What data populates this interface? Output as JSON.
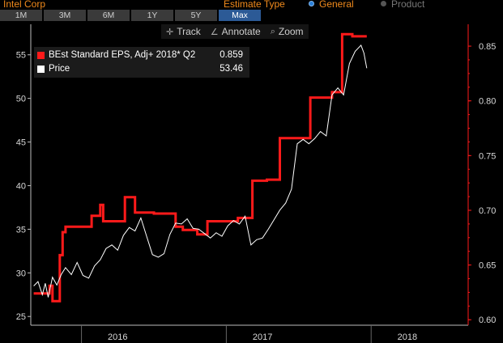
{
  "header": {
    "ticker": "Intel Corp",
    "estimate_type_label": "Estimate Type",
    "options": [
      {
        "label": "General",
        "selected": true
      },
      {
        "label": "Product",
        "selected": false
      }
    ]
  },
  "range_buttons": [
    {
      "label": "1M",
      "active": false
    },
    {
      "label": "3M",
      "active": false
    },
    {
      "label": "6M",
      "active": false
    },
    {
      "label": "1Y",
      "active": false
    },
    {
      "label": "5Y",
      "active": false
    },
    {
      "label": "Max",
      "active": true
    }
  ],
  "toolbar": {
    "track_label": "Track",
    "annotate_label": "Annotate",
    "zoom_label": "Zoom",
    "track_icon": "crosshair-icon",
    "annotate_icon": "pencil-icon",
    "zoom_icon": "magnifier-icon"
  },
  "chart_data": {
    "type": "line",
    "xlim": [
      2015.4,
      2018.42
    ],
    "x_ticks": [
      {
        "label": "2016",
        "at": 2016.0
      },
      {
        "label": "2017",
        "at": 2017.0
      },
      {
        "label": "2018",
        "at": 2018.0
      }
    ],
    "x_dividers": [
      2015.75,
      2016.75,
      2017.75
    ],
    "left_axis": {
      "ylim": [
        24,
        58.5
      ],
      "ticks": [
        25,
        30,
        35,
        40,
        45,
        50,
        55
      ]
    },
    "right_axis": {
      "ylim": [
        0.595,
        0.87
      ],
      "ticks": [
        "0.60",
        "0.65",
        "0.70",
        "0.75",
        "0.80",
        "0.85"
      ]
    },
    "series": [
      {
        "name": "BEst Standard EPS, Adj+ 2018* Q2",
        "legend_value": "0.859",
        "color": "#ff1a1a",
        "axis": "right",
        "step": true,
        "points": [
          [
            2015.42,
            0.624
          ],
          [
            2015.53,
            0.624
          ],
          [
            2015.53,
            0.631
          ],
          [
            2015.55,
            0.631
          ],
          [
            2015.55,
            0.617
          ],
          [
            2015.6,
            0.617
          ],
          [
            2015.6,
            0.659
          ],
          [
            2015.62,
            0.659
          ],
          [
            2015.62,
            0.68
          ],
          [
            2015.64,
            0.68
          ],
          [
            2015.64,
            0.685
          ],
          [
            2015.82,
            0.685
          ],
          [
            2015.82,
            0.695
          ],
          [
            2015.88,
            0.695
          ],
          [
            2015.88,
            0.705
          ],
          [
            2015.9,
            0.705
          ],
          [
            2015.9,
            0.69
          ],
          [
            2016.05,
            0.69
          ],
          [
            2016.05,
            0.712
          ],
          [
            2016.12,
            0.712
          ],
          [
            2016.12,
            0.698
          ],
          [
            2016.25,
            0.698
          ],
          [
            2016.25,
            0.697
          ],
          [
            2016.4,
            0.697
          ],
          [
            2016.4,
            0.685
          ],
          [
            2016.45,
            0.685
          ],
          [
            2016.45,
            0.682
          ],
          [
            2016.55,
            0.682
          ],
          [
            2016.55,
            0.678
          ],
          [
            2016.62,
            0.678
          ],
          [
            2016.62,
            0.69
          ],
          [
            2016.83,
            0.69
          ],
          [
            2016.83,
            0.693
          ],
          [
            2016.93,
            0.693
          ],
          [
            2016.93,
            0.727
          ],
          [
            2017.03,
            0.727
          ],
          [
            2017.03,
            0.728
          ],
          [
            2017.12,
            0.728
          ],
          [
            2017.12,
            0.766
          ],
          [
            2017.33,
            0.766
          ],
          [
            2017.33,
            0.803
          ],
          [
            2017.48,
            0.803
          ],
          [
            2017.48,
            0.808
          ],
          [
            2017.55,
            0.808
          ],
          [
            2017.55,
            0.861
          ],
          [
            2017.62,
            0.861
          ],
          [
            2017.62,
            0.859
          ],
          [
            2017.72,
            0.859
          ]
        ]
      },
      {
        "name": "Price",
        "legend_value": "53.46",
        "color": "#ffffff",
        "axis": "left",
        "step": false,
        "points": [
          [
            2015.42,
            28.5
          ],
          [
            2015.45,
            29.0
          ],
          [
            2015.48,
            27.5
          ],
          [
            2015.5,
            28.8
          ],
          [
            2015.52,
            27.2
          ],
          [
            2015.55,
            29.5
          ],
          [
            2015.58,
            28.6
          ],
          [
            2015.61,
            29.8
          ],
          [
            2015.64,
            30.6
          ],
          [
            2015.68,
            29.8
          ],
          [
            2015.72,
            31.2
          ],
          [
            2015.76,
            29.7
          ],
          [
            2015.8,
            29.4
          ],
          [
            2015.84,
            30.8
          ],
          [
            2015.88,
            31.5
          ],
          [
            2015.92,
            32.8
          ],
          [
            2015.96,
            33.2
          ],
          [
            2016.0,
            32.6
          ],
          [
            2016.04,
            34.3
          ],
          [
            2016.08,
            35.2
          ],
          [
            2016.12,
            34.8
          ],
          [
            2016.16,
            36.3
          ],
          [
            2016.2,
            34.2
          ],
          [
            2016.24,
            32.1
          ],
          [
            2016.28,
            31.8
          ],
          [
            2016.32,
            32.2
          ],
          [
            2016.36,
            34.4
          ],
          [
            2016.4,
            35.7
          ],
          [
            2016.44,
            35.6
          ],
          [
            2016.48,
            36.2
          ],
          [
            2016.52,
            35.1
          ],
          [
            2016.56,
            35.0
          ],
          [
            2016.6,
            34.5
          ],
          [
            2016.64,
            34.0
          ],
          [
            2016.68,
            34.6
          ],
          [
            2016.72,
            34.2
          ],
          [
            2016.76,
            35.4
          ],
          [
            2016.8,
            36.0
          ],
          [
            2016.84,
            35.6
          ],
          [
            2016.88,
            36.5
          ],
          [
            2016.92,
            33.2
          ],
          [
            2016.96,
            33.8
          ],
          [
            2017.0,
            34.0
          ],
          [
            2017.04,
            35.0
          ],
          [
            2017.08,
            36.1
          ],
          [
            2017.12,
            37.2
          ],
          [
            2017.16,
            38.0
          ],
          [
            2017.2,
            39.6
          ],
          [
            2017.24,
            44.8
          ],
          [
            2017.28,
            45.3
          ],
          [
            2017.32,
            44.8
          ],
          [
            2017.36,
            45.4
          ],
          [
            2017.4,
            46.2
          ],
          [
            2017.44,
            45.7
          ],
          [
            2017.48,
            50.4
          ],
          [
            2017.52,
            51.2
          ],
          [
            2017.56,
            50.4
          ],
          [
            2017.6,
            54.0
          ],
          [
            2017.64,
            55.4
          ],
          [
            2017.68,
            56.1
          ],
          [
            2017.7,
            55.2
          ],
          [
            2017.72,
            53.46
          ]
        ]
      }
    ]
  }
}
